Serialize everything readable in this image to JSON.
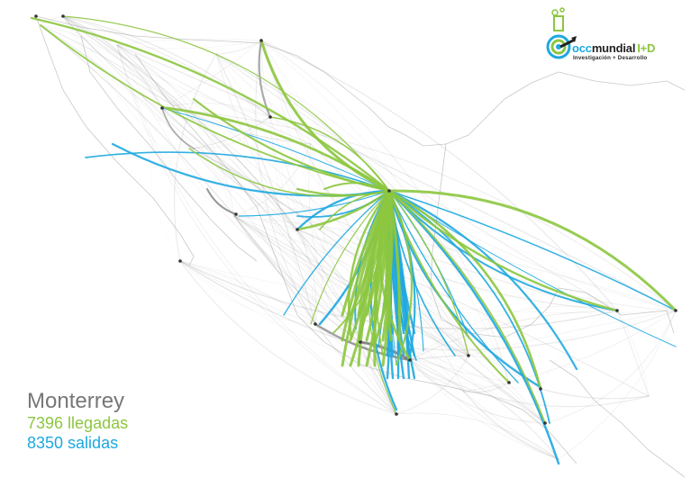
{
  "legend": {
    "city": "Monterrey",
    "arrivals": "7396 llegadas",
    "departures": "8350 salidas"
  },
  "logo": {
    "brand_occ": "occ",
    "brand_mundial": "mundial",
    "brand_id": "I+D",
    "tagline": "Investigación + Desarrollo"
  },
  "colors": {
    "arrivals": "#8cc63f",
    "departures": "#1ea8e0",
    "background_flows": "#9a9a9a",
    "coastline": "#c8c8c8",
    "city_text": "#777777"
  },
  "icons": [
    "flask-target-logo-icon"
  ]
}
